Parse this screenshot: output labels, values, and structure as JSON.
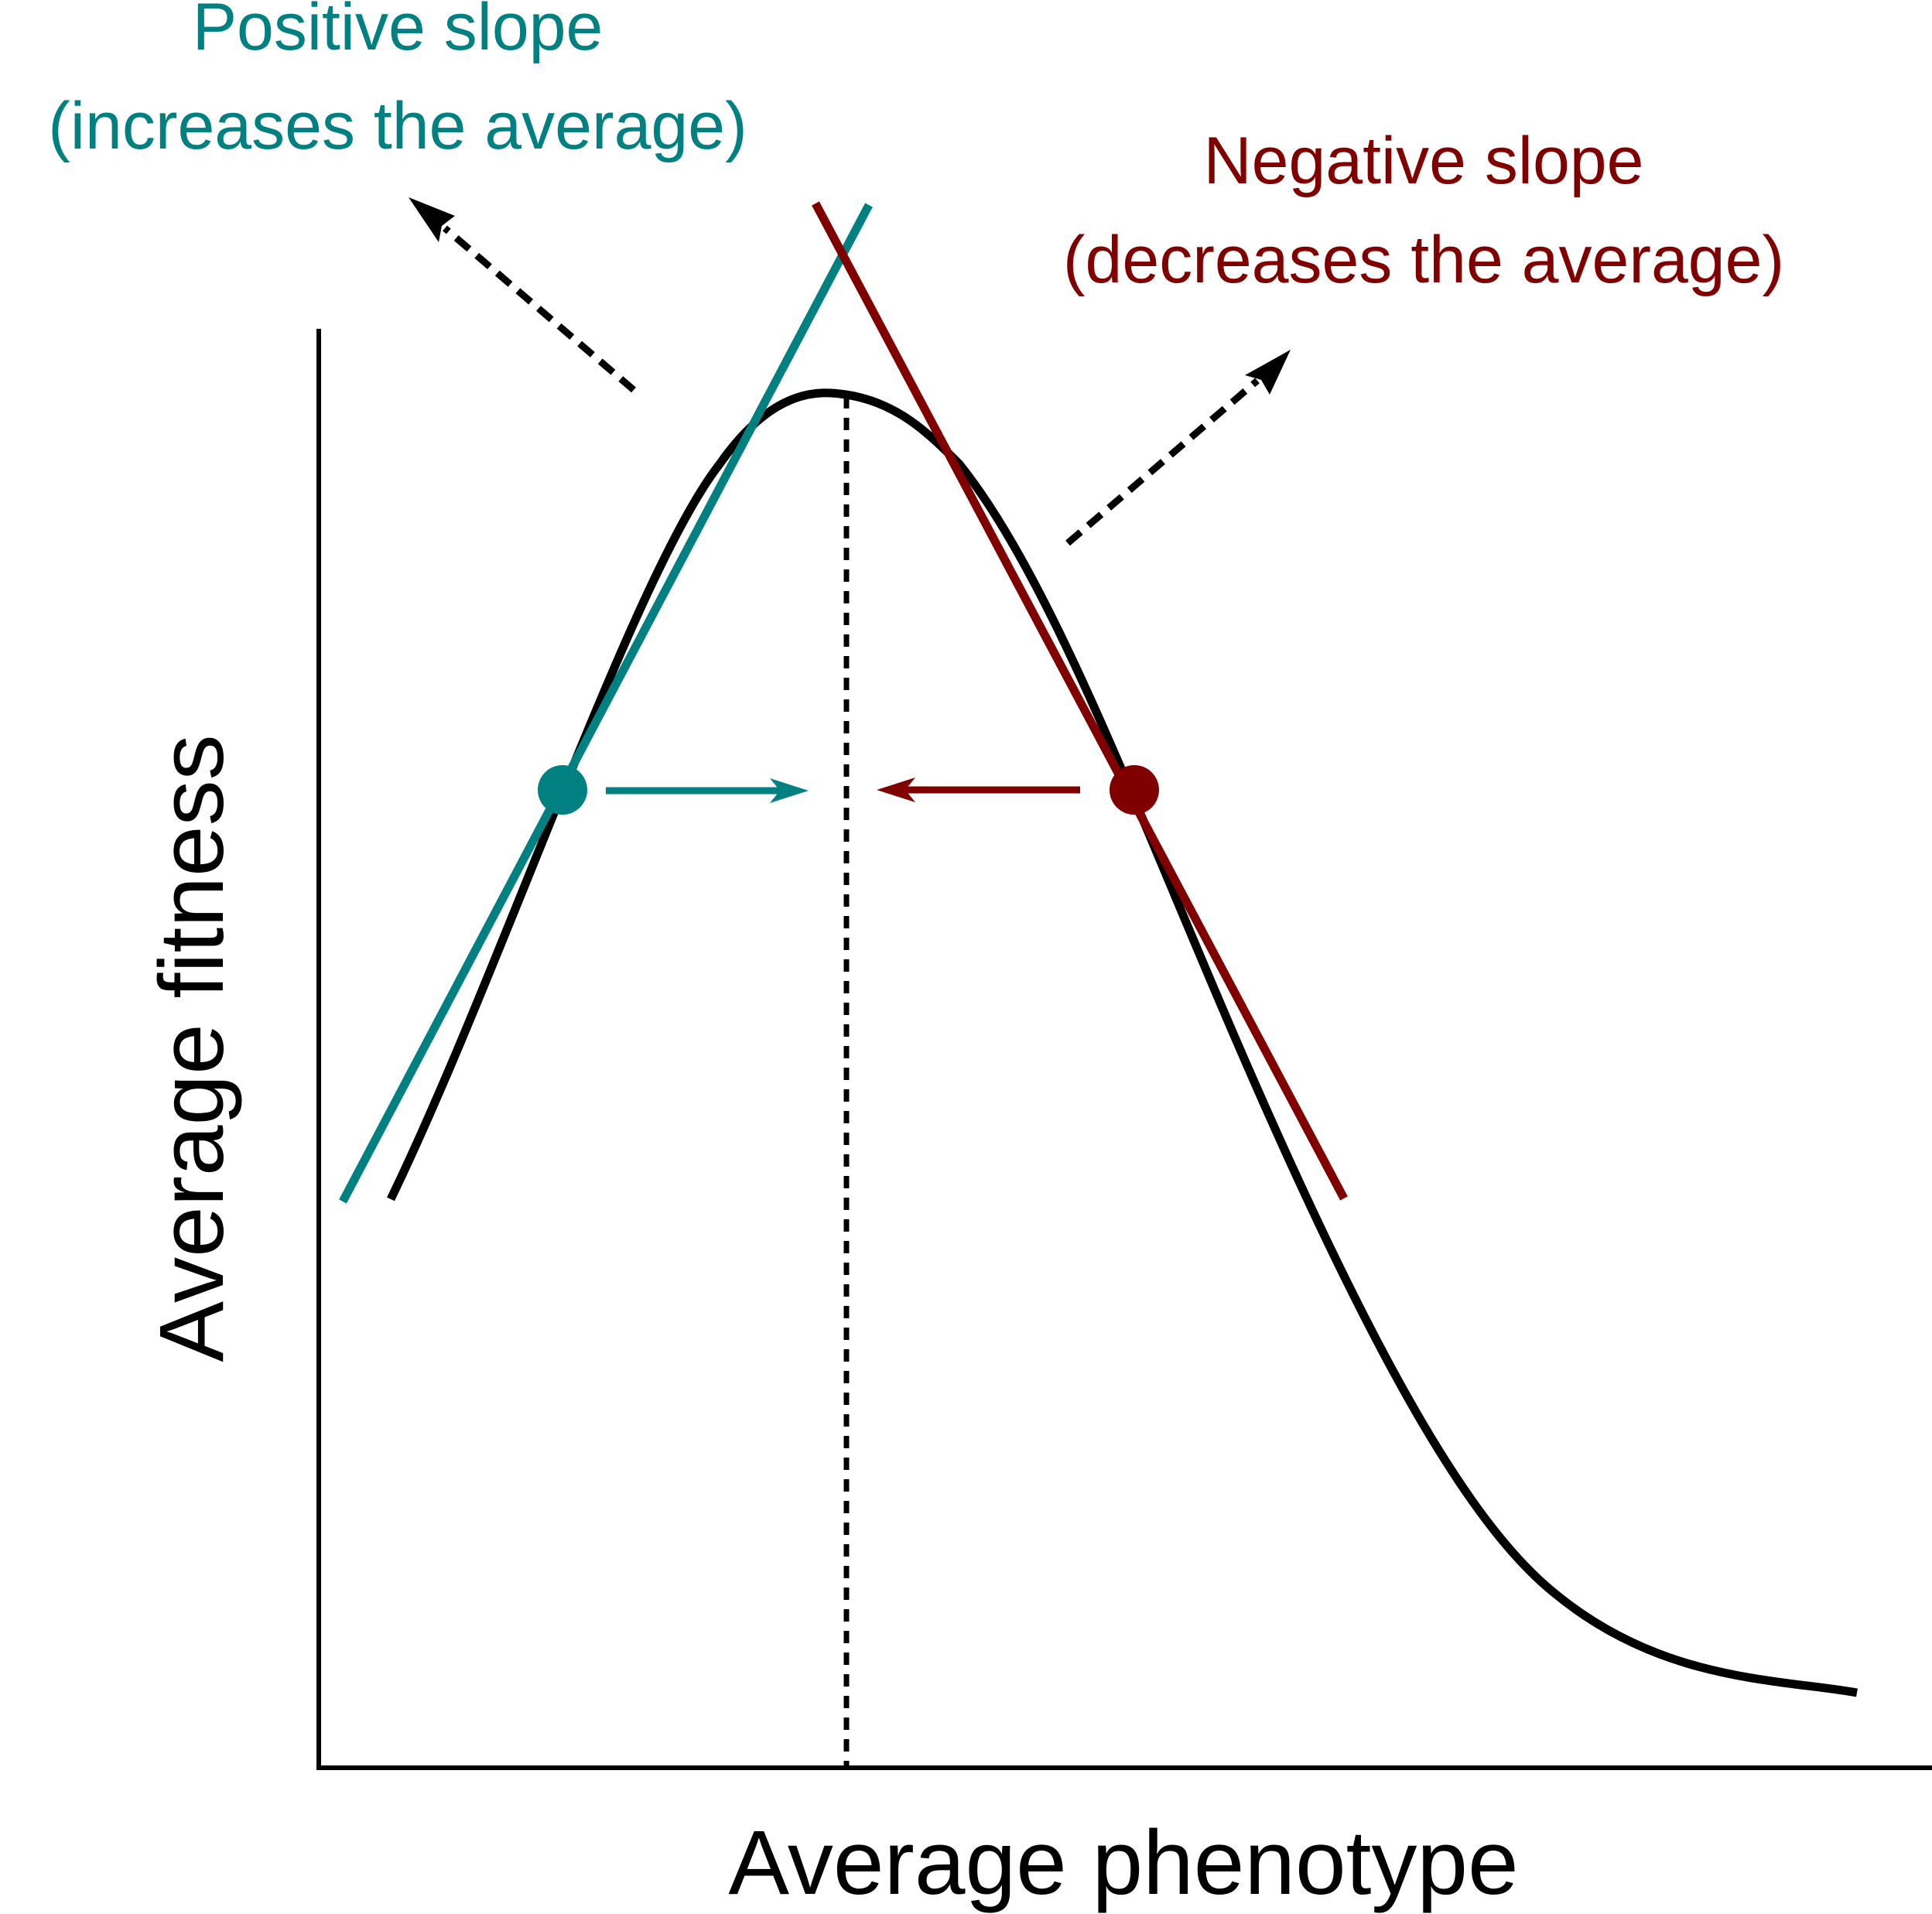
{
  "labels": {
    "positive_line1": "Positive slope",
    "positive_line2": "(increases the average)",
    "negative_line1": "Negative slope",
    "negative_line2": "(decreases the average)",
    "y_axis": "Average fitness",
    "x_axis": "Average phenotype"
  },
  "colors": {
    "positive": "#008080",
    "negative": "#800000",
    "curve": "#000000",
    "axis": "#000000",
    "dashed": "#000000"
  }
}
